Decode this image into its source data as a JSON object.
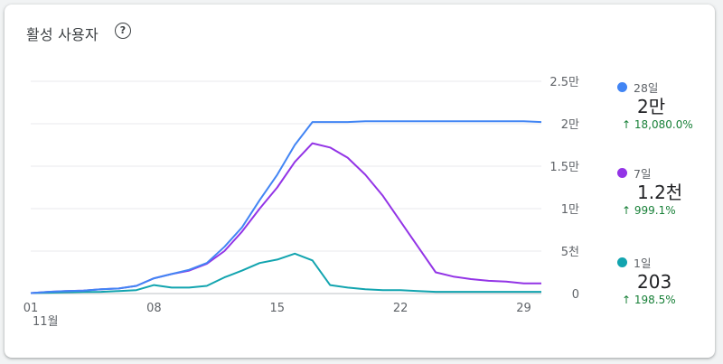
{
  "card": {
    "title": "활성 사용자",
    "help_icon": "help-circle-icon"
  },
  "legend": [
    {
      "name": "28일",
      "value": "2만",
      "delta": "18,080.0%",
      "color": "#4285f4"
    },
    {
      "name": "7일",
      "value": "1.2천",
      "delta": "999.1%",
      "color": "#9334e6"
    },
    {
      "name": "1일",
      "value": "203",
      "delta": "198.5%",
      "color": "#12a4af"
    }
  ],
  "delta_arrow": "↑",
  "chart_data": {
    "type": "line",
    "x_tick_labels": [
      "01",
      "08",
      "15",
      "22",
      "29"
    ],
    "x_tick_days": [
      1,
      8,
      15,
      22,
      29
    ],
    "x_sublabel": "11월",
    "y_tick_labels": [
      "0",
      "5천",
      "1만",
      "1.5만",
      "2만",
      "2.5만"
    ],
    "ylim": [
      0,
      25000
    ],
    "x": [
      1,
      2,
      3,
      4,
      5,
      6,
      7,
      8,
      9,
      10,
      11,
      12,
      13,
      14,
      15,
      16,
      17,
      18,
      19,
      20,
      21,
      22,
      23,
      24,
      25,
      26,
      27,
      28,
      29,
      30
    ],
    "series": [
      {
        "name": "28일",
        "color": "#4285f4",
        "values": [
          50,
          200,
          300,
          350,
          500,
          600,
          900,
          1800,
          2300,
          2800,
          3600,
          5500,
          7800,
          11000,
          14000,
          17500,
          20200,
          20200,
          20200,
          20300,
          20300,
          20300,
          20300,
          20300,
          20300,
          20300,
          20300,
          20300,
          20300,
          20200
        ]
      },
      {
        "name": "7일",
        "color": "#9334e6",
        "values": [
          50,
          200,
          300,
          350,
          500,
          600,
          900,
          1800,
          2300,
          2700,
          3500,
          5000,
          7300,
          10000,
          12500,
          15500,
          17700,
          17200,
          16000,
          14000,
          11500,
          8500,
          5500,
          2500,
          2000,
          1700,
          1500,
          1400,
          1200,
          1200
        ]
      },
      {
        "name": "1일",
        "color": "#12a4af",
        "values": [
          50,
          100,
          150,
          180,
          200,
          300,
          400,
          1000,
          700,
          700,
          900,
          1900,
          2700,
          3600,
          4000,
          4700,
          3900,
          1000,
          700,
          500,
          400,
          400,
          300,
          200,
          200,
          200,
          200,
          200,
          200,
          200
        ]
      }
    ]
  }
}
